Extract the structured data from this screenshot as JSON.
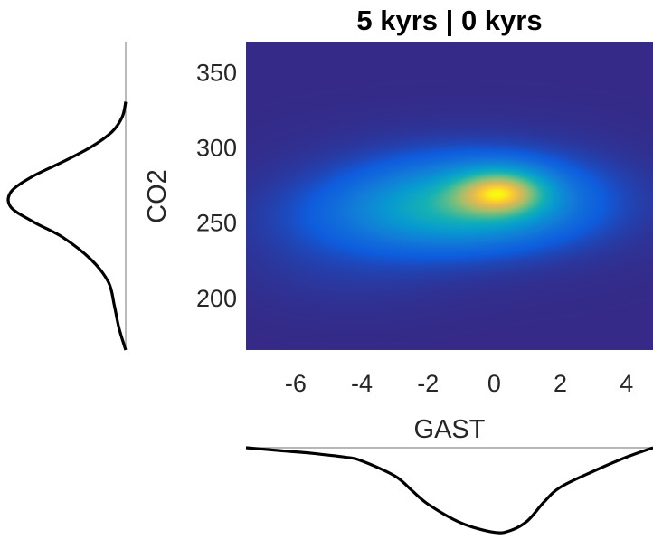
{
  "chart_data": {
    "type": "heatmap",
    "title": "5 kyrs | 0 kyrs",
    "xlabel": "GAST",
    "ylabel": "CO2",
    "xlim": [
      -7.5,
      4.8
    ],
    "ylim": [
      165,
      370
    ],
    "xticks": [
      -6,
      -4,
      -2,
      0,
      2,
      4
    ],
    "yticks": [
      200,
      250,
      300,
      350
    ],
    "grid": false,
    "colormap": "parula",
    "density_components": [
      {
        "x": 0.2,
        "y": 270,
        "sx": 0.9,
        "sy": 10,
        "w": 1.0
      },
      {
        "x": -0.6,
        "y": 266,
        "sx": 2.1,
        "sy": 17,
        "w": 0.55
      },
      {
        "x": -1.8,
        "y": 254,
        "sx": 2.4,
        "sy": 16,
        "w": 0.32
      },
      {
        "x": -1.0,
        "y": 264,
        "sx": 3.4,
        "sy": 28,
        "w": 0.12
      },
      {
        "x": -4.5,
        "y": 225,
        "sx": 2.2,
        "sy": 22,
        "w": 0.05
      }
    ],
    "marginal_x": {
      "x": [
        -7.5,
        -6.5,
        -5.5,
        -4.5,
        -4.0,
        -3.0,
        -2.5,
        -2.0,
        -1.0,
        0.0,
        0.5,
        1.0,
        1.5,
        2.0,
        3.0,
        4.0,
        4.8
      ],
      "density": [
        0.0,
        0.03,
        0.06,
        0.1,
        0.14,
        0.3,
        0.45,
        0.6,
        0.8,
        0.9,
        0.88,
        0.78,
        0.58,
        0.42,
        0.25,
        0.1,
        0.0
      ]
    },
    "marginal_y": {
      "y": [
        165,
        180,
        195,
        210,
        225,
        240,
        250,
        260,
        270,
        280,
        290,
        300,
        310,
        320,
        330
      ],
      "density": [
        0.0,
        0.06,
        0.1,
        0.15,
        0.3,
        0.55,
        0.8,
        1.0,
        1.0,
        0.82,
        0.55,
        0.3,
        0.12,
        0.03,
        0.0
      ]
    }
  }
}
